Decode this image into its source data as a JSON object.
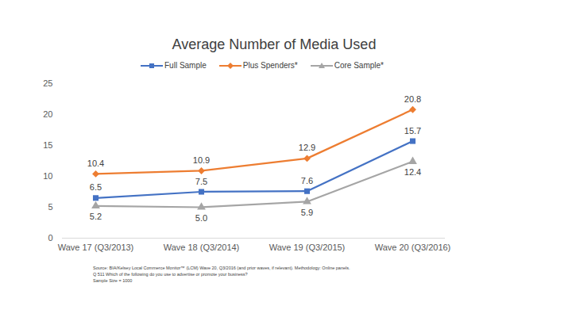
{
  "chart_data": {
    "type": "line",
    "title": "Average Number of Media Used",
    "categories": [
      "Wave 17 (Q3/2013)",
      "Wave 18 (Q3/2014)",
      "Wave 19 (Q3/2015)",
      "Wave 20 (Q3/2016)"
    ],
    "series": [
      {
        "name": "Full Sample",
        "color": "#4472c4",
        "marker": "square",
        "values": [
          6.5,
          7.5,
          7.6,
          15.7
        ]
      },
      {
        "name": "Plus Spenders*",
        "color": "#ed7d31",
        "marker": "diamond",
        "values": [
          10.4,
          10.9,
          12.9,
          20.8
        ]
      },
      {
        "name": "Core Sample*",
        "color": "#a5a5a5",
        "marker": "triangle",
        "values": [
          5.2,
          5.0,
          5.9,
          12.4
        ],
        "value_labels": [
          "5.2",
          "5.0",
          "5.9",
          "12.4"
        ]
      }
    ],
    "ylim": [
      0,
      25
    ],
    "yticks": [
      0,
      5,
      10,
      15,
      20,
      25
    ],
    "grid": false,
    "legend": "top",
    "data_labels": true,
    "notes": [
      "Source: BIA/Kelsey Local Commerce Monitor™ (LCM) Wave 20, Q3/2016 (and prior waves, if relevant). Methodology: Online panels.",
      "Q 511 Which of the following do you use to advertise or promote your business?",
      "Sample Size = 1000"
    ]
  }
}
